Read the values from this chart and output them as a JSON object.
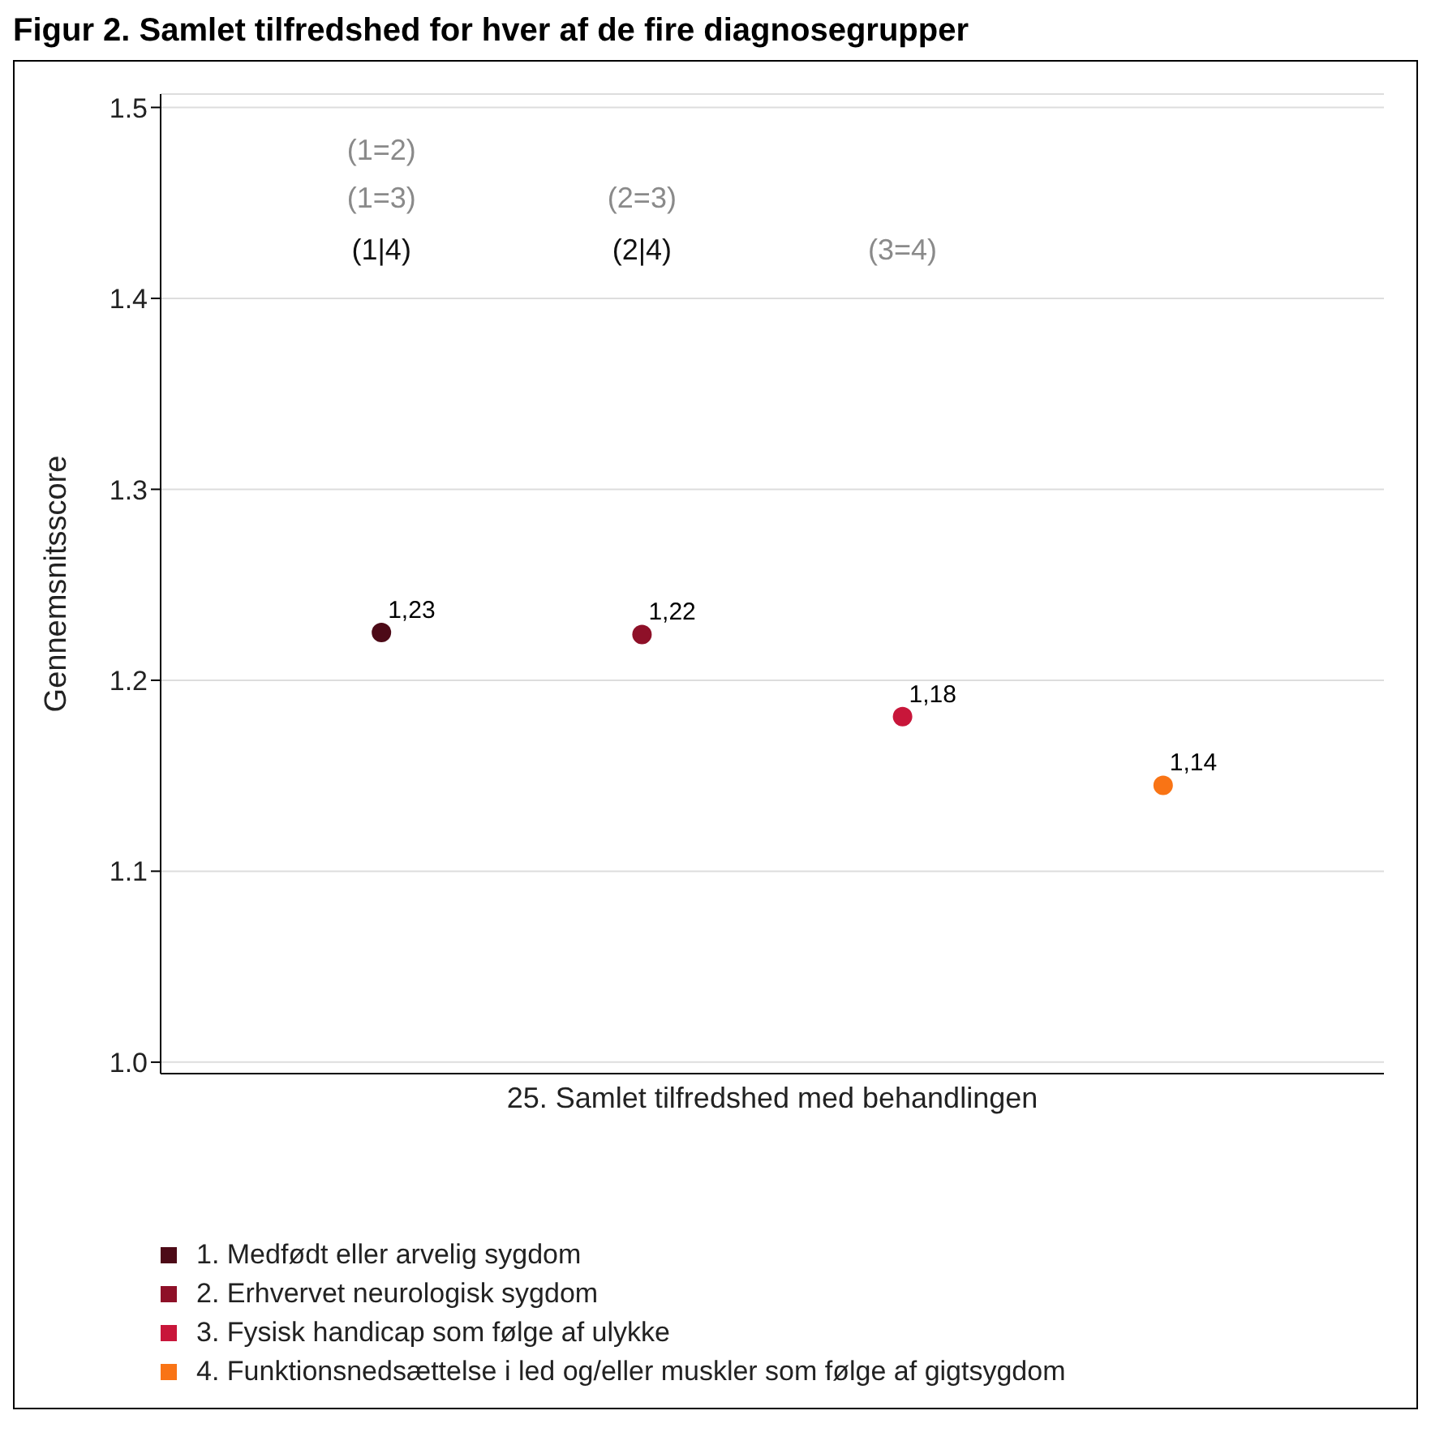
{
  "chart_data": {
    "type": "scatter",
    "title": "Figur 2. Samlet tilfredshed for hver af de fire diagnosegrupper",
    "ylabel": "Gennemsnitsscore",
    "categories": [
      "25. Samlet tilfredshed med behandlingen"
    ],
    "series": [
      {
        "name": "1. Medfødt eller arvelig sygdom",
        "color": "#4d0a17",
        "values": [
          1.225
        ],
        "value_labels": [
          "1,23"
        ]
      },
      {
        "name": "2. Erhvervet neurologisk sygdom",
        "color": "#8e1028",
        "values": [
          1.224
        ],
        "value_labels": [
          "1,22"
        ]
      },
      {
        "name": "3. Fysisk handicap som følge af ulykke",
        "color": "#c8163a",
        "values": [
          1.181
        ],
        "value_labels": [
          "1,18"
        ]
      },
      {
        "name": "4. Funktionsnedsættelse i led og/eller muskler som følge af gigtsygdom",
        "color": "#f97415",
        "values": [
          1.145
        ],
        "value_labels": [
          "1,14"
        ]
      }
    ],
    "ylim": [
      0.994,
      1.507
    ],
    "yticks": [
      {
        "value": 1,
        "label": "1.0"
      },
      {
        "value": 1.1,
        "label": "1.1"
      },
      {
        "value": 1.2,
        "label": "1.2"
      },
      {
        "value": 1.3,
        "label": "1.3"
      },
      {
        "value": 1.4,
        "label": "1.4"
      },
      {
        "value": 1.5,
        "label": "1.5"
      }
    ],
    "grid": "y",
    "legend": "bottom",
    "marker": "circle",
    "annotations": [
      "(1=2)",
      "(1=3)",
      "(1|4)",
      "(2=3)",
      "(2|4)",
      "(3=4)"
    ]
  }
}
